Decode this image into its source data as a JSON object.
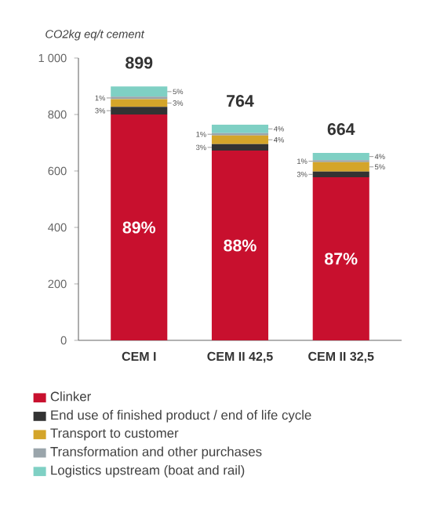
{
  "chart_data": {
    "type": "bar",
    "stacked": true,
    "ylabel": "CO2kg eq/t cement",
    "categories": [
      "CEM I",
      "CEM II 42,5",
      "CEM II 32,5"
    ],
    "series": [
      {
        "name": "Clinker",
        "color": "#c8102e",
        "values": [
          800,
          672,
          578
        ]
      },
      {
        "name": "End use of finished product / end of life cycle",
        "color": "#333333",
        "values": [
          27,
          23,
          20
        ]
      },
      {
        "name": "Transport to customer",
        "color": "#d4a52a",
        "values": [
          27,
          31,
          33
        ]
      },
      {
        "name": "Transformation and other purchases",
        "color": "#9aa5ab",
        "values": [
          9,
          8,
          7
        ]
      },
      {
        "name": "Logistics upstream (boat and rail)",
        "color": "#7fd0c4",
        "values": [
          36,
          30,
          26
        ]
      }
    ],
    "annotations": [
      "89%",
      "3%",
      "3%",
      "1%",
      "5%",
      "88%",
      "3%",
      "4%",
      "1%",
      "4%",
      "87%",
      "3%",
      "5%",
      "1%",
      "4%"
    ],
    "totals": [
      "899",
      "764",
      "664"
    ],
    "ylim": [
      0,
      1000
    ],
    "yticks": [
      0,
      200,
      400,
      600,
      800,
      {
        "value": 1000,
        "label": "1 000"
      }
    ],
    "legend": "bottom"
  }
}
